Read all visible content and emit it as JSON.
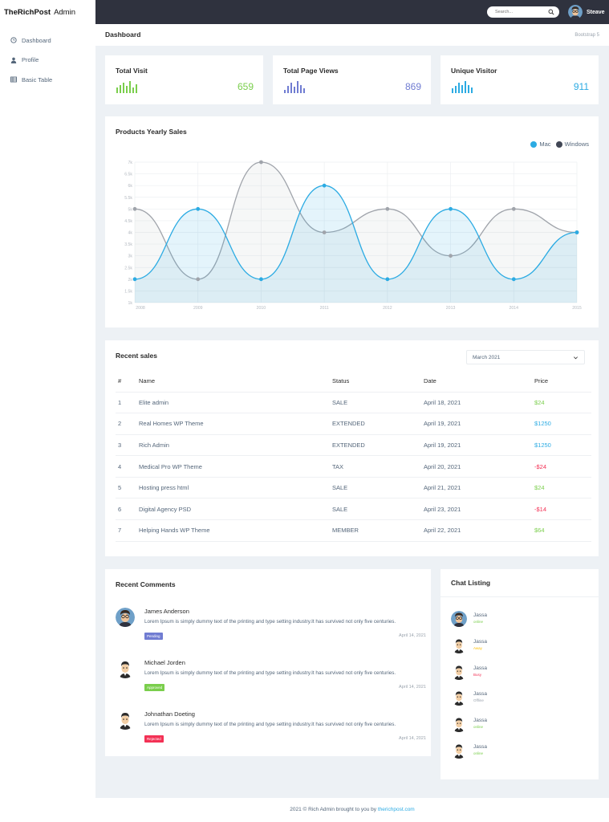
{
  "brand": {
    "name_bold": "TheRichPost",
    "name_rest": "Admin"
  },
  "sidebar": {
    "items": [
      {
        "label": "Dashboard",
        "icon": "clock-icon"
      },
      {
        "label": "Profile",
        "icon": "user-icon"
      },
      {
        "label": "Basic Table",
        "icon": "table-icon"
      }
    ]
  },
  "topbar": {
    "search_placeholder": "Search...",
    "user_name": "Steave"
  },
  "page": {
    "title": "Dashboard",
    "breadcrumb": "Bootstrap 5"
  },
  "stats": [
    {
      "label": "Total Visit",
      "value": "659",
      "color": "#7ace4c",
      "bars": [
        0.45,
        0.65,
        0.9,
        0.6,
        1.0,
        0.45,
        0.75
      ]
    },
    {
      "label": "Total Page Views",
      "value": "869",
      "color": "#707cd2",
      "bars": [
        0.3,
        0.6,
        0.85,
        0.55,
        1.0,
        0.7,
        0.4
      ]
    },
    {
      "label": "Unique Visitor",
      "value": "911",
      "color": "#2cabe3",
      "bars": [
        0.4,
        0.6,
        0.85,
        0.65,
        1.0,
        0.7,
        0.45
      ]
    }
  ],
  "chart_data": {
    "type": "line",
    "title": "Products Yearly Sales",
    "x": [
      "2008",
      "2009",
      "2010",
      "2011",
      "2012",
      "2013",
      "2014",
      "2015"
    ],
    "y_ticks": [
      "1k",
      "1.5k",
      "2k",
      "2.5k",
      "3k",
      "3.5k",
      "4k",
      "4.5k",
      "5k",
      "5.5k",
      "6k",
      "6.5k",
      "7k"
    ],
    "ylim": [
      1,
      7
    ],
    "series": [
      {
        "name": "Mac",
        "color": "#2cabe3",
        "values": [
          2,
          5,
          2,
          6,
          2,
          5,
          2,
          4
        ]
      },
      {
        "name": "Windows",
        "color": "#a0a4ab",
        "values": [
          5,
          2,
          7,
          4,
          5,
          3,
          5,
          4
        ]
      }
    ],
    "legend_colors": [
      "#2cabe3",
      "#414755"
    ],
    "legend_position": "top-right",
    "grid": true
  },
  "sales": {
    "title": "Recent sales",
    "filter": "March 2021",
    "columns": [
      "#",
      "Name",
      "Status",
      "Date",
      "Price"
    ],
    "rows": [
      {
        "n": "1",
        "name": "Elite admin",
        "status": "SALE",
        "date": "April 18, 2021",
        "price": "$24",
        "price_color": "#7ace4c"
      },
      {
        "n": "2",
        "name": "Real Homes WP Theme",
        "status": "EXTENDED",
        "date": "April 19, 2021",
        "price": "$1250",
        "price_color": "#2cabe3"
      },
      {
        "n": "3",
        "name": "Rich Admin",
        "status": "EXTENDED",
        "date": "April 19, 2021",
        "price": "$1250",
        "price_color": "#2cabe3"
      },
      {
        "n": "4",
        "name": "Medical Pro WP Theme",
        "status": "TAX",
        "date": "April 20, 2021",
        "price": "-$24",
        "price_color": "#f33155"
      },
      {
        "n": "5",
        "name": "Hosting press html",
        "status": "SALE",
        "date": "April 21, 2021",
        "price": "$24",
        "price_color": "#7ace4c"
      },
      {
        "n": "6",
        "name": "Digital Agency PSD",
        "status": "SALE",
        "date": "April 23, 2021",
        "price": "-$14",
        "price_color": "#f33155"
      },
      {
        "n": "7",
        "name": "Helping Hands WP Theme",
        "status": "MEMBER",
        "date": "April 22, 2021",
        "price": "$64",
        "price_color": "#7ace4c"
      }
    ]
  },
  "comments": {
    "title": "Recent Comments",
    "items": [
      {
        "name": "James Anderson",
        "text": "Lorem Ipsum is simply dummy text of the printing and type setting industry.It has survived not only five centuries.",
        "badge": "Pending",
        "badge_color": "#707cd2",
        "date": "April 14, 2021",
        "avatar": "glasses"
      },
      {
        "name": "Michael Jorden",
        "text": "Lorem Ipsum is simply dummy text of the printing and type setting industry.It has survived not only five centuries.",
        "badge": "Approved",
        "badge_color": "#7ace4c",
        "date": "April 14, 2021",
        "avatar": "plain"
      },
      {
        "name": "Johnathan Doeting",
        "text": "Lorem Ipsum is simply dummy text of the printing and type setting industry.It has survived not only five centuries.",
        "badge": "Rejected",
        "badge_color": "#f33155",
        "date": "April 14, 2021",
        "avatar": "plain"
      }
    ]
  },
  "chat": {
    "title": "Chat Listing",
    "items": [
      {
        "name": "Jassa",
        "status": "online",
        "status_color": "#7ace4c",
        "avatar": "glasses"
      },
      {
        "name": "Jassa",
        "status": "Away",
        "status_color": "#fdc006",
        "avatar": "plain"
      },
      {
        "name": "Jassa",
        "status": "Busy",
        "status_color": "#f33155",
        "avatar": "plain"
      },
      {
        "name": "Jassa",
        "status": "Offline",
        "status_color": "#9aa3ad",
        "avatar": "plain"
      },
      {
        "name": "Jassa",
        "status": "online",
        "status_color": "#7ace4c",
        "avatar": "plain"
      },
      {
        "name": "Jassa",
        "status": "online",
        "status_color": "#7ace4c",
        "avatar": "plain"
      }
    ]
  },
  "footer": {
    "text": "2021 © Rich Admin brought to you by ",
    "link": "therichpost.com"
  }
}
